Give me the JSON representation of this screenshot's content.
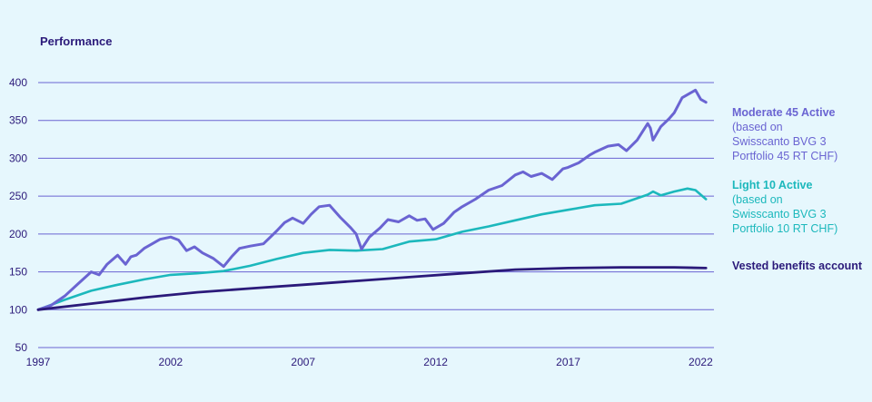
{
  "chart_data": {
    "type": "line",
    "title": "Performance",
    "x_ticks": [
      "1997",
      "2002",
      "2007",
      "2012",
      "2017",
      "2022"
    ],
    "y_ticks": [
      50,
      100,
      150,
      200,
      250,
      300,
      350,
      400
    ],
    "xlim": [
      1997,
      2022.5
    ],
    "ylim": [
      50,
      400
    ],
    "grid": "horizontal",
    "legend_placement": "right",
    "series": [
      {
        "name": "Moderate 45 Active",
        "subtitle_lines": [
          "(based on",
          "Swisscanto BVG 3",
          "Portfolio 45 RT CHF)"
        ],
        "color": "#6a64d2",
        "x": [
          1997.0,
          1997.5,
          1998.0,
          1998.5,
          1999.0,
          1999.3,
          1999.6,
          2000.0,
          2000.3,
          2000.5,
          2000.7,
          2001.0,
          2001.3,
          2001.6,
          2002.0,
          2002.3,
          2002.6,
          2002.9,
          2003.2,
          2003.6,
          2004.0,
          2004.3,
          2004.6,
          2005.0,
          2005.5,
          2006.0,
          2006.3,
          2006.6,
          2007.0,
          2007.3,
          2007.6,
          2008.0,
          2008.4,
          2008.8,
          2009.0,
          2009.2,
          2009.5,
          2009.9,
          2010.2,
          2010.6,
          2011.0,
          2011.3,
          2011.6,
          2011.9,
          2012.3,
          2012.7,
          2013.0,
          2013.5,
          2014.0,
          2014.5,
          2015.0,
          2015.3,
          2015.6,
          2016.0,
          2016.4,
          2016.8,
          2017.0,
          2017.4,
          2017.8,
          2018.0,
          2018.5,
          2018.9,
          2019.2,
          2019.6,
          2020.0,
          2020.1,
          2020.2,
          2020.5,
          2020.8,
          2021.0,
          2021.3,
          2021.6,
          2021.8,
          2022.0,
          2022.2
        ],
        "values": [
          100,
          106,
          118,
          134,
          150,
          146,
          160,
          172,
          160,
          170,
          172,
          181,
          187,
          193,
          196,
          192,
          178,
          183,
          175,
          168,
          157,
          170,
          181,
          184,
          187,
          204,
          215,
          221,
          214,
          226,
          236,
          238,
          222,
          208,
          200,
          180,
          196,
          208,
          219,
          216,
          224,
          218,
          220,
          206,
          214,
          229,
          236,
          246,
          258,
          264,
          278,
          282,
          276,
          280,
          272,
          286,
          288,
          294,
          304,
          308,
          316,
          318,
          310,
          324,
          346,
          340,
          324,
          342,
          352,
          360,
          380,
          386,
          390,
          378,
          374
        ]
      },
      {
        "name": "Light 10 Active",
        "subtitle_lines": [
          "(based on",
          "Swisscanto BVG 3",
          "Portfolio 10 RT CHF)"
        ],
        "color": "#1cb8bc",
        "x": [
          1997.0,
          1998.0,
          1999.0,
          2000.0,
          2001.0,
          2002.0,
          2003.0,
          2004.0,
          2005.0,
          2006.0,
          2007.0,
          2008.0,
          2009.0,
          2010.0,
          2011.0,
          2012.0,
          2013.0,
          2014.0,
          2015.0,
          2016.0,
          2017.0,
          2018.0,
          2019.0,
          2020.0,
          2020.2,
          2020.5,
          2021.0,
          2021.5,
          2021.8,
          2022.0,
          2022.2
        ],
        "values": [
          100,
          113,
          125,
          133,
          140,
          146,
          148,
          151,
          158,
          167,
          175,
          179,
          178,
          180,
          190,
          193,
          203,
          210,
          218,
          226,
          232,
          238,
          240,
          252,
          256,
          251,
          256,
          260,
          258,
          252,
          246
        ]
      },
      {
        "name": "Vested benefits account",
        "color": "#2b1a7a",
        "x": [
          1997.0,
          1999.0,
          2001.0,
          2003.0,
          2005.0,
          2007.0,
          2009.0,
          2011.0,
          2013.0,
          2015.0,
          2017.0,
          2019.0,
          2021.0,
          2022.2
        ],
        "values": [
          100,
          108,
          116,
          123,
          128,
          133,
          138,
          143,
          148,
          153,
          155,
          156,
          156,
          155
        ]
      }
    ]
  }
}
